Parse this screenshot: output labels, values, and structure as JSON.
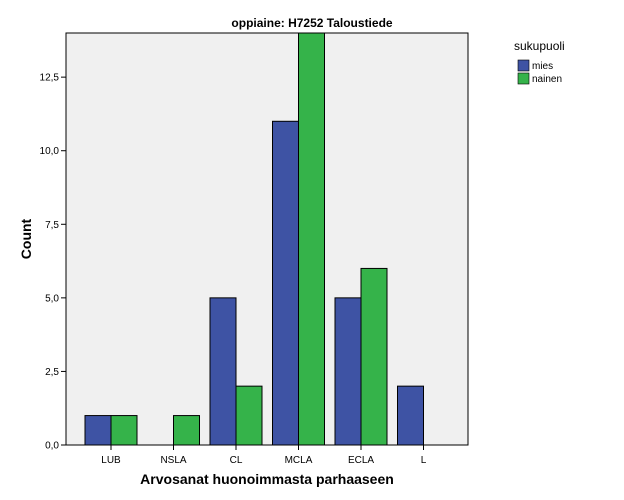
{
  "chart_data": {
    "type": "bar",
    "title": "oppiaine: H7252 Taloustiede",
    "xlabel": "Arvosanat huonoimmasta parhaaseen",
    "ylabel": "Count",
    "categories": [
      "LUB",
      "NSLA",
      "CL",
      "MCLA",
      "ECLA",
      "L"
    ],
    "series": [
      {
        "name": "mies",
        "values": [
          1,
          0,
          5,
          11,
          5,
          2
        ],
        "color": "#3e53a4"
      },
      {
        "name": "nainen",
        "values": [
          1,
          1,
          2,
          14,
          6,
          0
        ],
        "color": "#35b34a"
      }
    ],
    "ylim": [
      0,
      14.0
    ],
    "yticks": [
      0,
      2.5,
      5.0,
      7.5,
      10.0,
      12.5
    ],
    "ytick_labels": [
      "0,0",
      "2,5",
      "5,0",
      "7,5",
      "10,0",
      "12,5"
    ],
    "legend": {
      "title": "sukupuoli",
      "position": "right"
    },
    "grid": false,
    "plot_background": "#f0f0f0"
  }
}
